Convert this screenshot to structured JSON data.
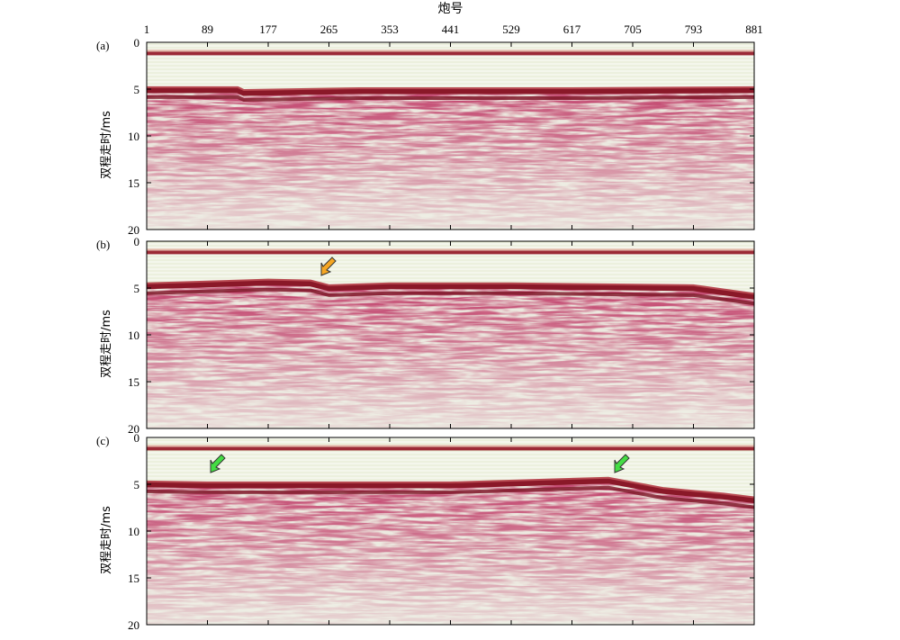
{
  "chart_data": [
    {
      "type": "image",
      "label": "(a)",
      "xlabel": "炮号",
      "ylabel": "双程走时/ms",
      "xlim": [
        1,
        881
      ],
      "xticks": [
        1,
        89,
        177,
        265,
        353,
        441,
        529,
        617,
        705,
        793,
        881
      ],
      "ylim": [
        0,
        20
      ],
      "yticks": [
        0,
        5,
        10,
        15,
        20
      ]
    },
    {
      "type": "image",
      "label": "(b)",
      "ylabel": "双程走时/ms",
      "xlim": [
        1,
        881
      ],
      "ylim": [
        0,
        20
      ],
      "yticks": [
        0,
        5,
        10,
        15,
        20
      ]
    },
    {
      "type": "image",
      "label": "(c)",
      "ylabel": "双程走时/ms",
      "xlim": [
        1,
        881
      ],
      "ylim": [
        0,
        20
      ],
      "yticks": [
        0,
        5,
        10,
        15,
        20
      ]
    }
  ]
}
